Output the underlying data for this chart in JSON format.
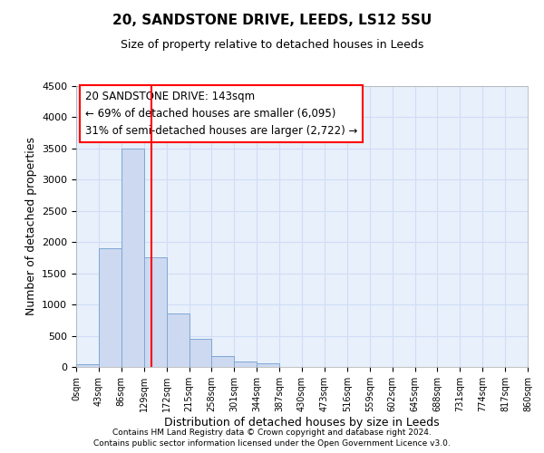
{
  "title": "20, SANDSTONE DRIVE, LEEDS, LS12 5SU",
  "subtitle": "Size of property relative to detached houses in Leeds",
  "xlabel": "Distribution of detached houses by size in Leeds",
  "ylabel": "Number of detached properties",
  "bar_color": "#ccd9f0",
  "bar_edge_color": "#7fa8d4",
  "background_color": "#e8f0fb",
  "grid_color": "#d0ddf5",
  "red_line_x": 143,
  "bin_width": 43,
  "bin_starts": [
    0,
    43,
    86,
    129,
    172,
    215,
    258,
    301,
    344,
    387,
    430,
    473,
    516,
    559,
    602,
    645,
    688,
    731,
    774,
    817
  ],
  "bar_heights": [
    50,
    1900,
    3500,
    1750,
    850,
    450,
    175,
    90,
    55,
    0,
    0,
    0,
    0,
    0,
    0,
    0,
    0,
    0,
    0,
    0
  ],
  "ylim": [
    0,
    4500
  ],
  "yticks": [
    0,
    500,
    1000,
    1500,
    2000,
    2500,
    3000,
    3500,
    4000,
    4500
  ],
  "annotation_title": "20 SANDSTONE DRIVE: 143sqm",
  "annotation_line1": "← 69% of detached houses are smaller (6,095)",
  "annotation_line2": "31% of semi-detached houses are larger (2,722) →",
  "footer1": "Contains HM Land Registry data © Crown copyright and database right 2024.",
  "footer2": "Contains public sector information licensed under the Open Government Licence v3.0.",
  "tick_labels": [
    "0sqm",
    "43sqm",
    "86sqm",
    "129sqm",
    "172sqm",
    "215sqm",
    "258sqm",
    "301sqm",
    "344sqm",
    "387sqm",
    "430sqm",
    "473sqm",
    "516sqm",
    "559sqm",
    "602sqm",
    "645sqm",
    "688sqm",
    "731sqm",
    "774sqm",
    "817sqm",
    "860sqm"
  ]
}
